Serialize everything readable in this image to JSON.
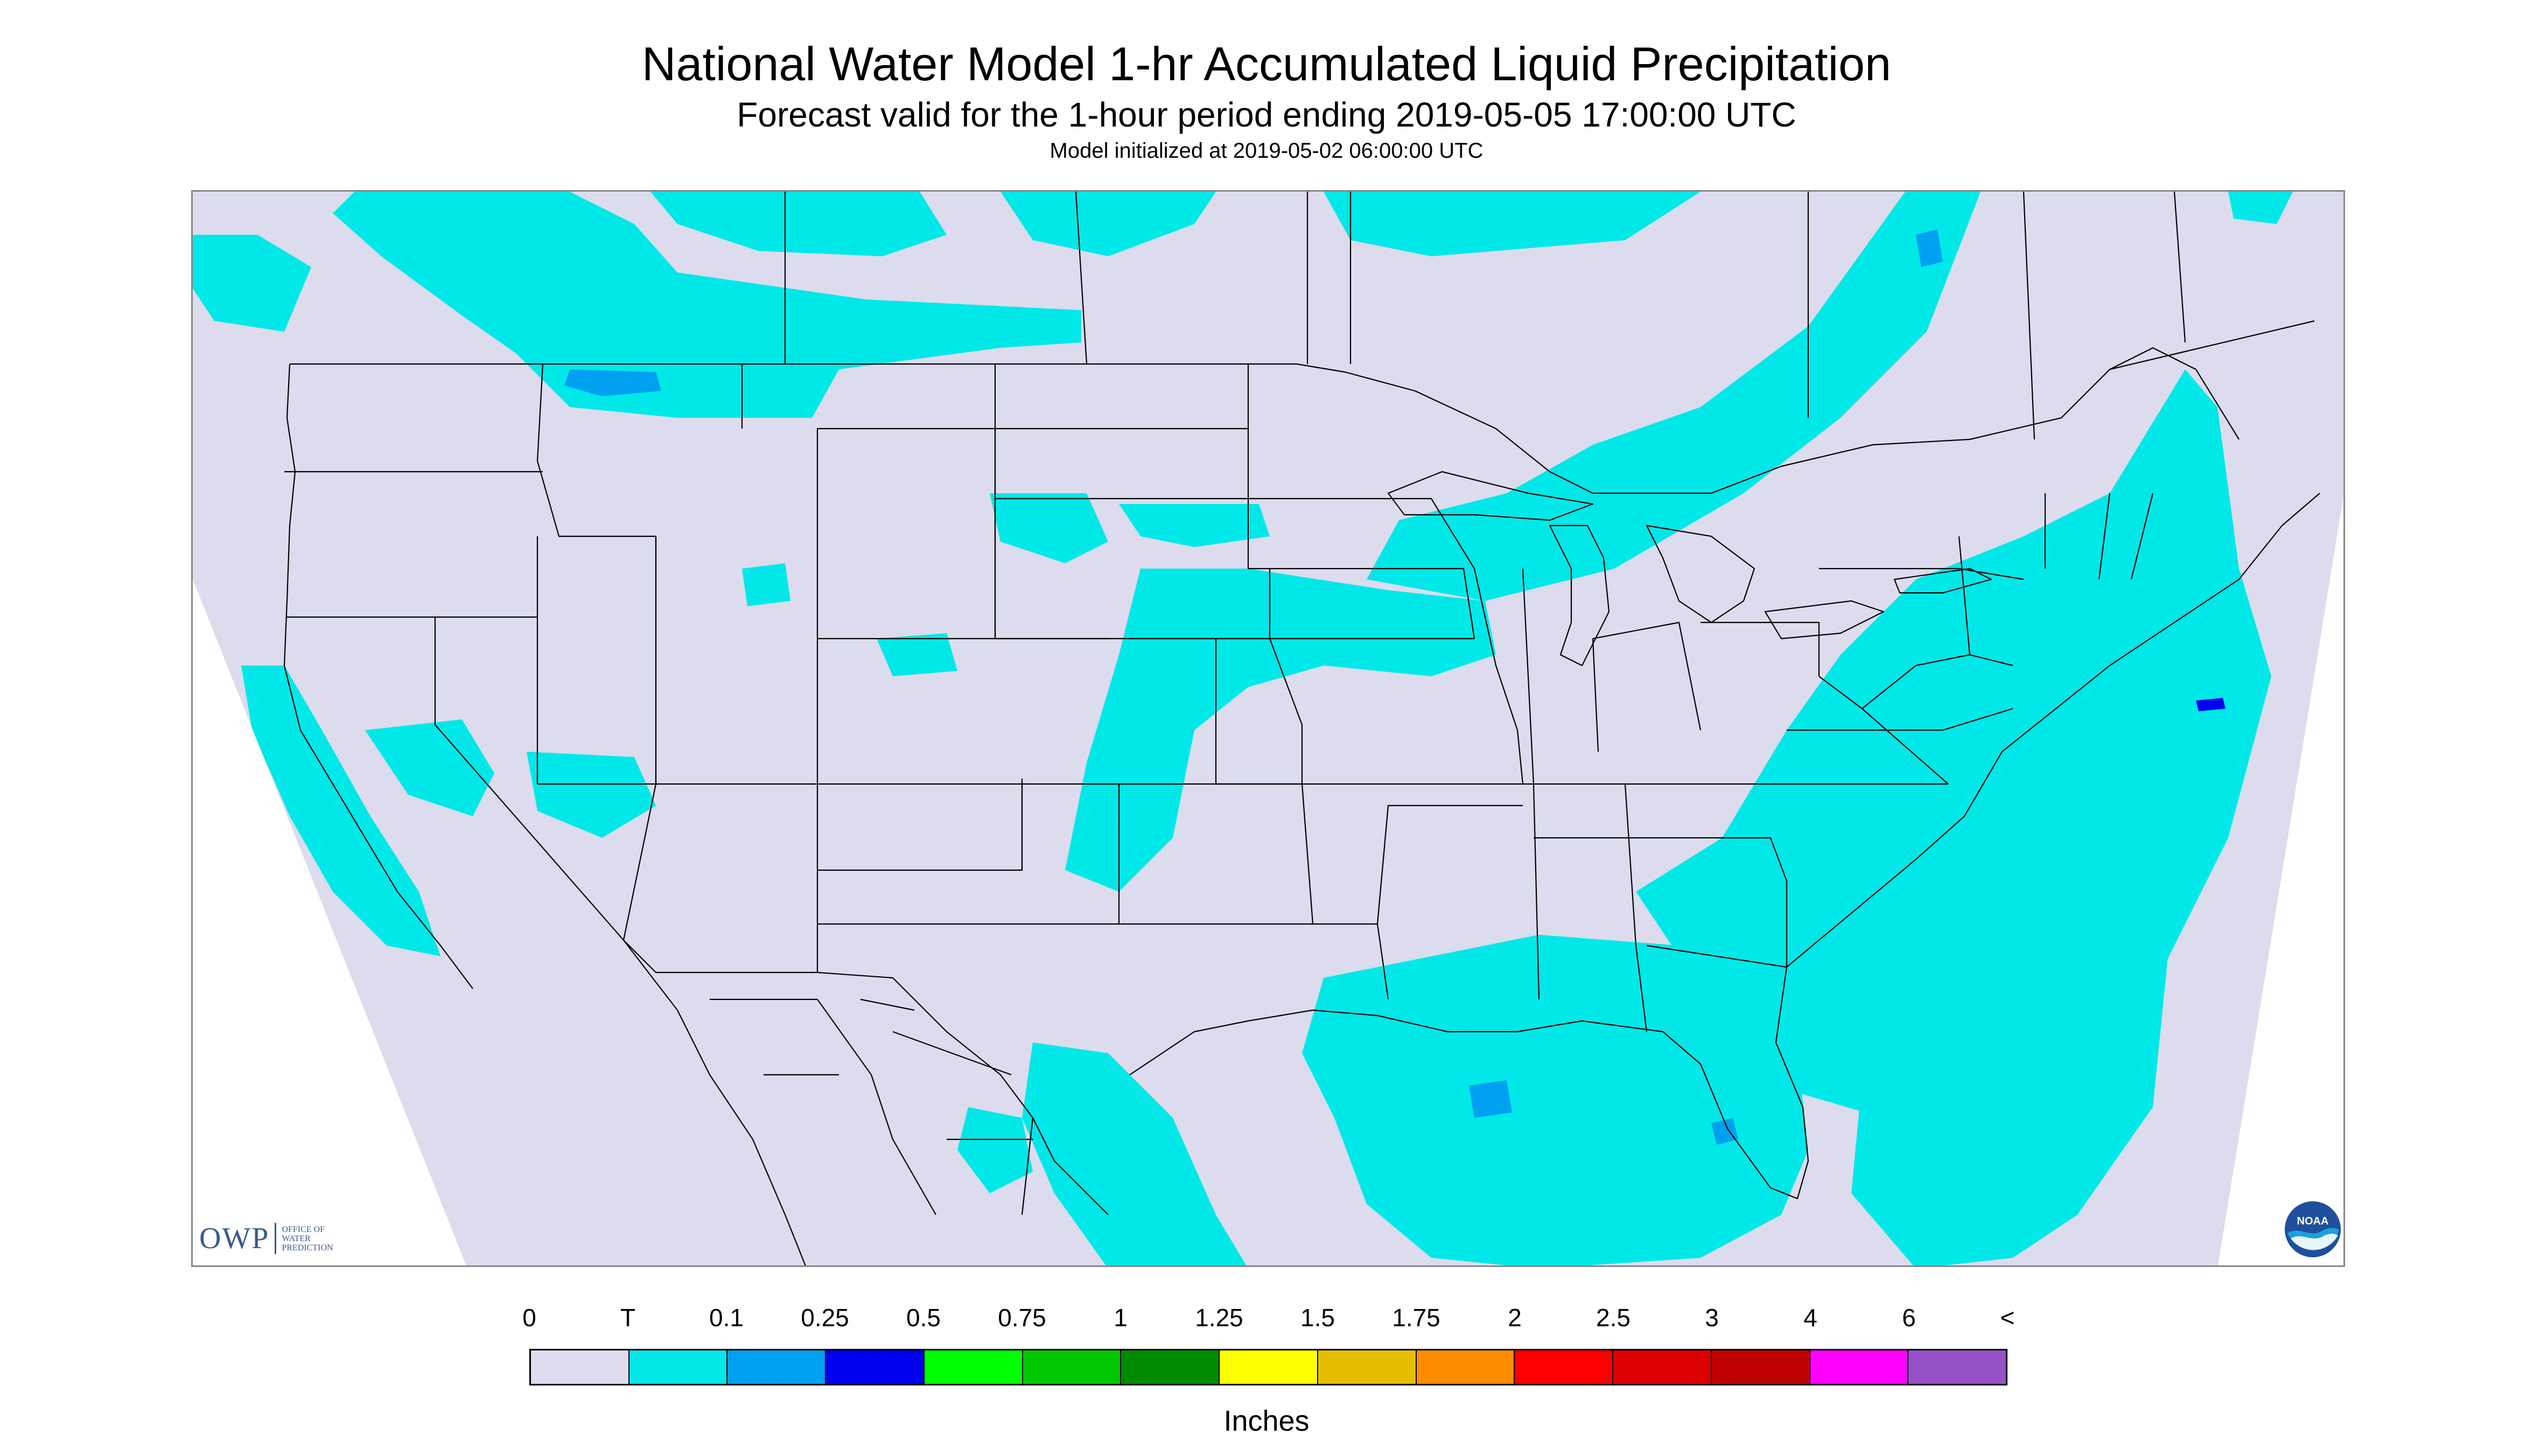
{
  "title": "National Water Model 1-hr Accumulated Liquid Precipitation",
  "subtitle": "Forecast valid for the 1-hour period ending 2019-05-05 17:00:00 UTC",
  "init_line": "Model initialized at 2019-05-02 06:00:00 UTC",
  "logos": {
    "owp_mark": "OWP",
    "owp_text": [
      "OFFICE OF",
      "WATER",
      "PREDICTION"
    ],
    "noaa_text": "NOAA"
  },
  "legend": {
    "tick_labels": [
      "0",
      "T",
      "0.1",
      "0.25",
      "0.5",
      "0.75",
      "1",
      "1.25",
      "1.5",
      "1.75",
      "2",
      "2.5",
      "3",
      "4",
      "6",
      "<"
    ],
    "colors": [
      "#dcdcee",
      "#00e8e8",
      "#00a0f0",
      "#0000f0",
      "#00ff00",
      "#00c800",
      "#008c00",
      "#ffff00",
      "#e6be00",
      "#ff8c00",
      "#ff0000",
      "#dc0000",
      "#be0000",
      "#ff00ff",
      "#9650c8"
    ],
    "units": "Inches"
  },
  "map": {
    "background_color": "#dcdcee",
    "outside_color": "#ffffff",
    "boundary_color": "#000000",
    "precip_trace_color": "#00e8e8",
    "precip_light_color": "#00a0f0",
    "precip_heavy_color": "#0000f0"
  }
}
